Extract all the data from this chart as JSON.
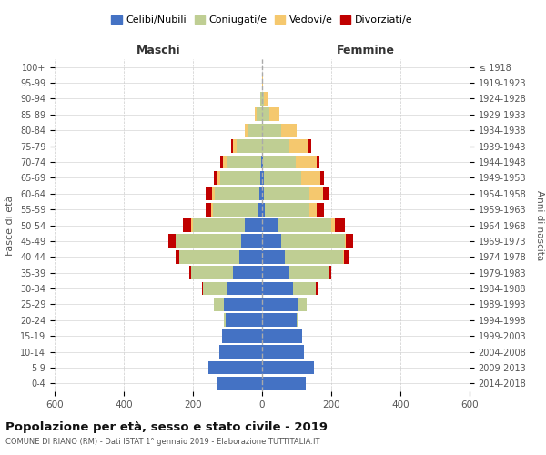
{
  "age_groups": [
    "0-4",
    "5-9",
    "10-14",
    "15-19",
    "20-24",
    "25-29",
    "30-34",
    "35-39",
    "40-44",
    "45-49",
    "50-54",
    "55-59",
    "60-64",
    "65-69",
    "70-74",
    "75-79",
    "80-84",
    "85-89",
    "90-94",
    "95-99",
    "100+"
  ],
  "birth_years": [
    "2014-2018",
    "2009-2013",
    "2004-2008",
    "1999-2003",
    "1994-1998",
    "1989-1993",
    "1984-1988",
    "1979-1983",
    "1974-1978",
    "1969-1973",
    "1964-1968",
    "1959-1963",
    "1954-1958",
    "1949-1953",
    "1944-1948",
    "1939-1943",
    "1934-1938",
    "1929-1933",
    "1924-1928",
    "1919-1923",
    "≤ 1918"
  ],
  "males": {
    "celibi": [
      130,
      155,
      125,
      115,
      105,
      110,
      100,
      85,
      65,
      60,
      50,
      12,
      8,
      5,
      2,
      0,
      0,
      0,
      0,
      0,
      0
    ],
    "coniugati": [
      0,
      0,
      0,
      2,
      5,
      30,
      70,
      120,
      175,
      190,
      150,
      130,
      130,
      115,
      100,
      75,
      40,
      15,
      4,
      1,
      0
    ],
    "vedovi": [
      0,
      0,
      0,
      0,
      0,
      0,
      0,
      0,
      0,
      0,
      5,
      5,
      8,
      10,
      12,
      10,
      10,
      5,
      2,
      0,
      0
    ],
    "divorziati": [
      0,
      0,
      0,
      0,
      0,
      0,
      5,
      5,
      10,
      20,
      25,
      15,
      18,
      10,
      8,
      5,
      0,
      0,
      0,
      0,
      0
    ]
  },
  "females": {
    "nubili": [
      125,
      150,
      120,
      115,
      100,
      105,
      90,
      80,
      65,
      55,
      45,
      8,
      6,
      4,
      2,
      0,
      0,
      0,
      0,
      0,
      0
    ],
    "coniugate": [
      0,
      0,
      0,
      2,
      5,
      25,
      65,
      115,
      170,
      185,
      155,
      130,
      130,
      110,
      95,
      80,
      55,
      20,
      5,
      1,
      0
    ],
    "vedove": [
      0,
      0,
      0,
      0,
      0,
      0,
      0,
      0,
      2,
      2,
      10,
      20,
      40,
      55,
      60,
      55,
      45,
      30,
      10,
      2,
      0
    ],
    "divorziate": [
      0,
      0,
      0,
      0,
      0,
      0,
      5,
      5,
      15,
      20,
      30,
      20,
      18,
      10,
      10,
      8,
      0,
      0,
      0,
      0,
      0
    ]
  },
  "colors": {
    "celibi_nubili": "#4472C4",
    "coniugati": "#BFCE93",
    "vedovi": "#F5C86E",
    "divorziati": "#C00000"
  },
  "title": "Popolazione per età, sesso e stato civile - 2019",
  "subtitle": "COMUNE DI RIANO (RM) - Dati ISTAT 1° gennaio 2019 - Elaborazione TUTTITALIA.IT",
  "xlabel_left": "Maschi",
  "xlabel_right": "Femmine",
  "ylabel_left": "Fasce di età",
  "ylabel_right": "Anni di nascita",
  "xlim": 600,
  "legend_labels": [
    "Celibi/Nubili",
    "Coniugati/e",
    "Vedovi/e",
    "Divorziati/e"
  ]
}
